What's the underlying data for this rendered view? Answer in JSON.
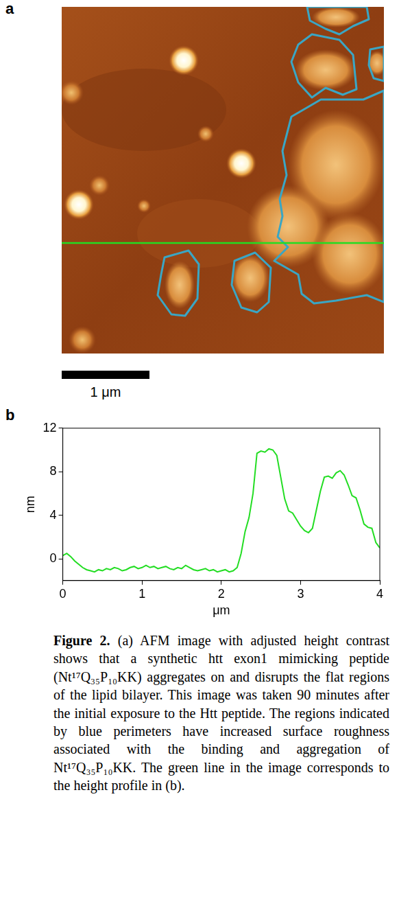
{
  "panel_a": {
    "label": "a",
    "scale_bar": "1 μm"
  },
  "chart_data": {
    "label": "b",
    "type": "line",
    "color": "#22dd22",
    "xlabel": "μm",
    "ylabel": "nm",
    "x": [
      0,
      0.05,
      0.1,
      0.15,
      0.2,
      0.25,
      0.3,
      0.35,
      0.4,
      0.45,
      0.5,
      0.55,
      0.6,
      0.65,
      0.7,
      0.75,
      0.8,
      0.85,
      0.9,
      0.95,
      1,
      1.05,
      1.1,
      1.15,
      1.2,
      1.25,
      1.3,
      1.35,
      1.4,
      1.45,
      1.5,
      1.55,
      1.6,
      1.65,
      1.7,
      1.75,
      1.8,
      1.85,
      1.9,
      1.95,
      2,
      2.05,
      2.1,
      2.15,
      2.2,
      2.25,
      2.3,
      2.35,
      2.4,
      2.45,
      2.5,
      2.55,
      2.6,
      2.65,
      2.7,
      2.75,
      2.8,
      2.85,
      2.9,
      2.95,
      3,
      3.05,
      3.1,
      3.15,
      3.2,
      3.25,
      3.3,
      3.35,
      3.4,
      3.45,
      3.5,
      3.55,
      3.6,
      3.65,
      3.7,
      3.75,
      3.8,
      3.85,
      3.9,
      3.95,
      4
    ],
    "values": [
      0.3,
      0.5,
      0.2,
      -0.2,
      -0.5,
      -0.8,
      -1.0,
      -1.1,
      -1.2,
      -1.0,
      -1.1,
      -0.9,
      -1.0,
      -0.8,
      -0.9,
      -1.1,
      -1.0,
      -0.8,
      -0.7,
      -0.9,
      -0.8,
      -0.6,
      -0.8,
      -0.7,
      -0.9,
      -0.8,
      -0.7,
      -0.9,
      -1.0,
      -0.8,
      -0.9,
      -0.6,
      -0.8,
      -1.0,
      -1.1,
      -1.0,
      -0.9,
      -1.1,
      -1.0,
      -1.2,
      -1.1,
      -1.0,
      -1.2,
      -1.1,
      -0.8,
      0.5,
      2.5,
      3.8,
      6.0,
      9.7,
      9.9,
      9.8,
      10.1,
      10.0,
      9.5,
      7.5,
      5.5,
      4.4,
      4.2,
      3.6,
      3.0,
      2.6,
      2.4,
      2.8,
      4.5,
      6.2,
      7.5,
      7.6,
      7.4,
      7.9,
      8.1,
      7.7,
      6.8,
      5.8,
      5.6,
      4.5,
      3.2,
      2.9,
      2.8,
      1.5,
      1.0
    ],
    "xlim": [
      0,
      4
    ],
    "xticks": [
      0,
      1,
      2,
      3,
      4
    ],
    "ylim": [
      -2,
      12
    ],
    "yticks": [
      0,
      4,
      8,
      12
    ],
    "grid": false
  },
  "caption": {
    "label": "Figure 2.",
    "text": "(a) AFM image with adjusted height contrast shows that a synthetic htt exon1 mimicking peptide (Nt¹⁷Q₃₅P₁₀KK) aggregates on and disrupts the flat regions of the lipid bilayer. This image was taken 90 minutes after the initial exposure to the Htt peptide. The regions indicated by blue perimeters have increased surface roughness associated with the binding and aggregation of Nt¹⁷Q₃₅P₁₀KK. The green line in the image corresponds to the height profile in (b)."
  }
}
